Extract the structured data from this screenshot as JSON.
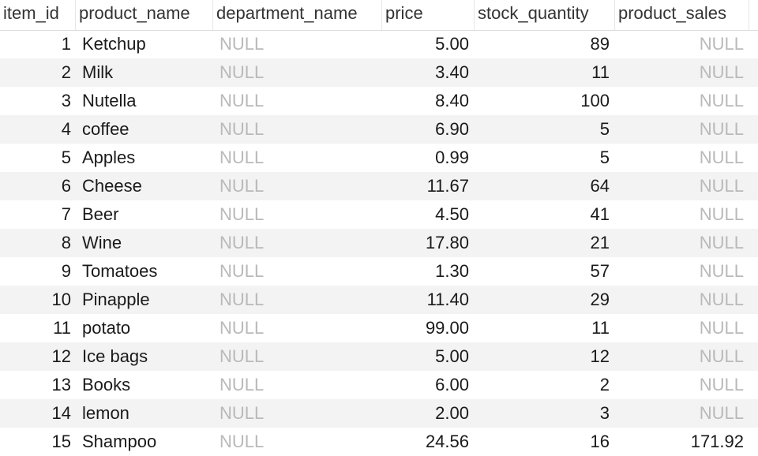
{
  "columns": [
    "item_id",
    "product_name",
    "department_name",
    "price",
    "stock_quantity",
    "product_sales"
  ],
  "null_label": "NULL",
  "rows": [
    {
      "item_id": "1",
      "product_name": "Ketchup",
      "department_name": "NULL",
      "price": "5.00",
      "stock_quantity": "89",
      "product_sales": "NULL"
    },
    {
      "item_id": "2",
      "product_name": "Milk",
      "department_name": "NULL",
      "price": "3.40",
      "stock_quantity": "11",
      "product_sales": "NULL"
    },
    {
      "item_id": "3",
      "product_name": "Nutella",
      "department_name": "NULL",
      "price": "8.40",
      "stock_quantity": "100",
      "product_sales": "NULL"
    },
    {
      "item_id": "4",
      "product_name": "coffee",
      "department_name": "NULL",
      "price": "6.90",
      "stock_quantity": "5",
      "product_sales": "NULL"
    },
    {
      "item_id": "5",
      "product_name": "Apples",
      "department_name": "NULL",
      "price": "0.99",
      "stock_quantity": "5",
      "product_sales": "NULL"
    },
    {
      "item_id": "6",
      "product_name": "Cheese",
      "department_name": "NULL",
      "price": "11.67",
      "stock_quantity": "64",
      "product_sales": "NULL"
    },
    {
      "item_id": "7",
      "product_name": "Beer",
      "department_name": "NULL",
      "price": "4.50",
      "stock_quantity": "41",
      "product_sales": "NULL"
    },
    {
      "item_id": "8",
      "product_name": "Wine",
      "department_name": "NULL",
      "price": "17.80",
      "stock_quantity": "21",
      "product_sales": "NULL"
    },
    {
      "item_id": "9",
      "product_name": "Tomatoes",
      "department_name": "NULL",
      "price": "1.30",
      "stock_quantity": "57",
      "product_sales": "NULL"
    },
    {
      "item_id": "10",
      "product_name": "Pinapple",
      "department_name": "NULL",
      "price": "11.40",
      "stock_quantity": "29",
      "product_sales": "NULL"
    },
    {
      "item_id": "11",
      "product_name": "potato",
      "department_name": "NULL",
      "price": "99.00",
      "stock_quantity": "11",
      "product_sales": "NULL"
    },
    {
      "item_id": "12",
      "product_name": "Ice bags",
      "department_name": "NULL",
      "price": "5.00",
      "stock_quantity": "12",
      "product_sales": "NULL"
    },
    {
      "item_id": "13",
      "product_name": "Books",
      "department_name": "NULL",
      "price": "6.00",
      "stock_quantity": "2",
      "product_sales": "NULL"
    },
    {
      "item_id": "14",
      "product_name": "lemon",
      "department_name": "NULL",
      "price": "2.00",
      "stock_quantity": "3",
      "product_sales": "NULL"
    },
    {
      "item_id": "15",
      "product_name": "Shampoo",
      "department_name": "NULL",
      "price": "24.56",
      "stock_quantity": "16",
      "product_sales": "171.92"
    }
  ]
}
